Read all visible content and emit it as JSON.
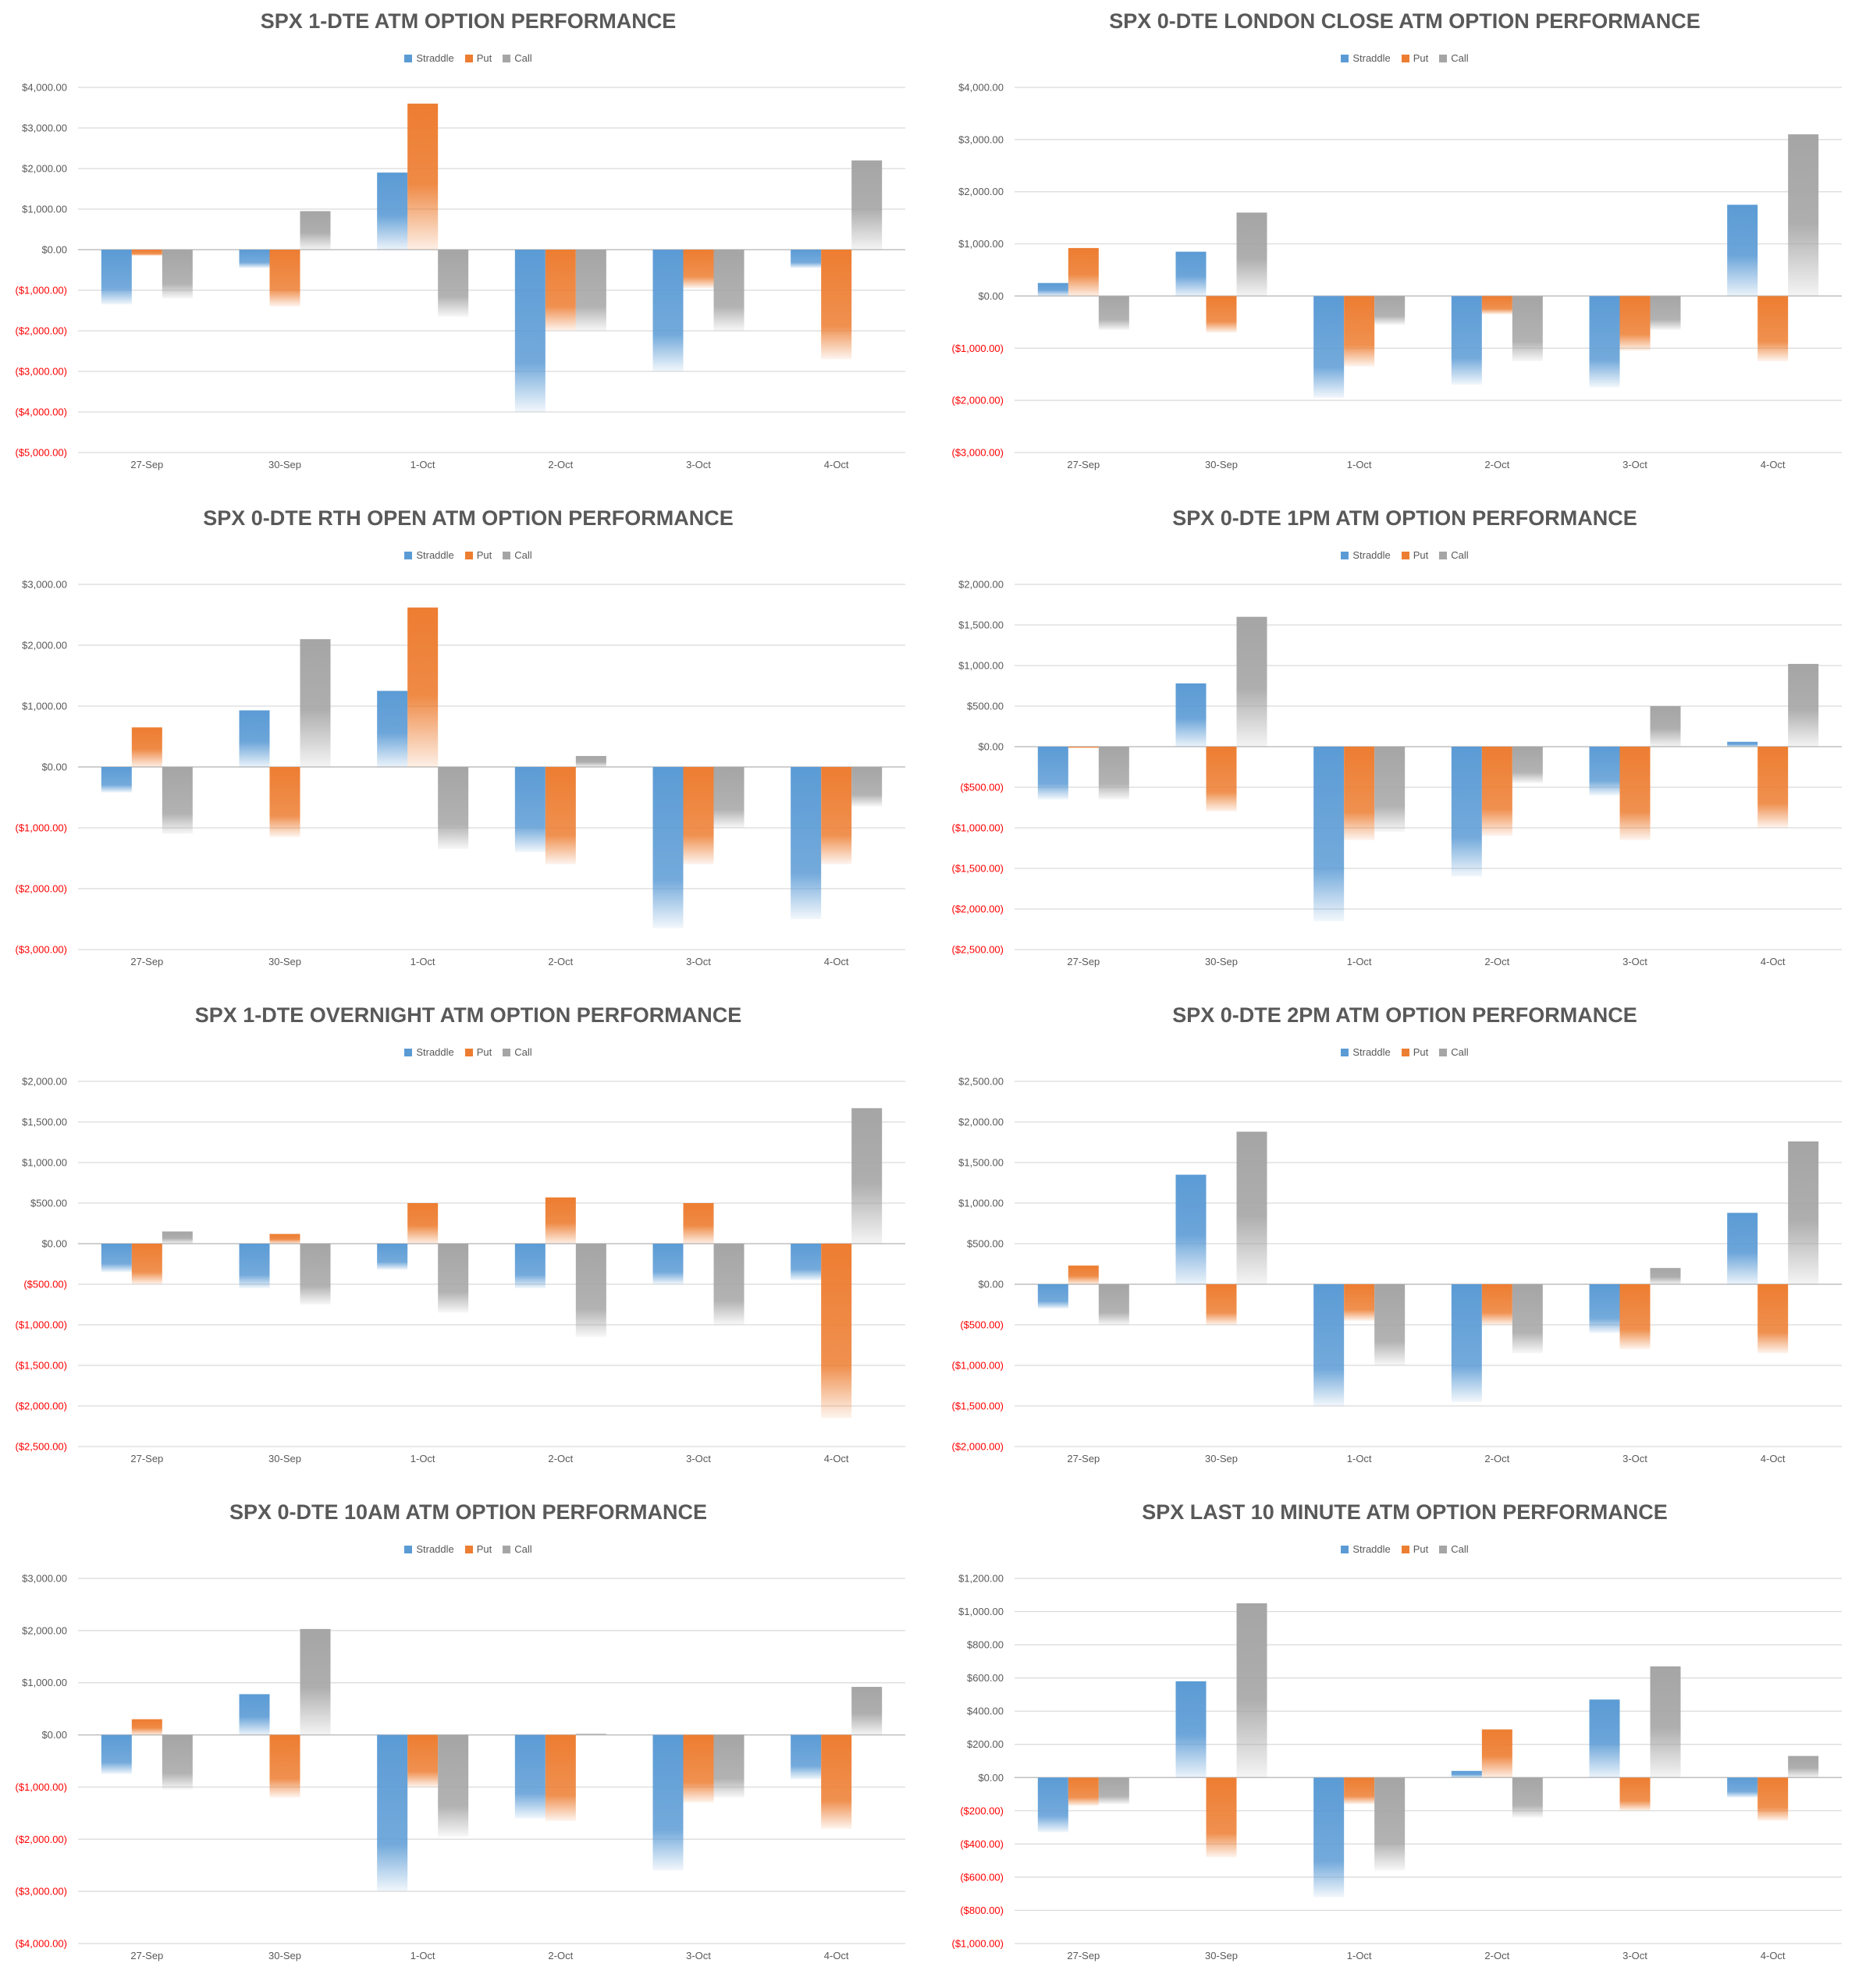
{
  "colors": {
    "straddle": "#5b9bd5",
    "put": "#ed7d31",
    "call": "#a5a5a5",
    "negative_label": "#ff0000",
    "label": "#595959",
    "grid": "#d9d9d9"
  },
  "legend": {
    "straddle": "Straddle",
    "put": "Put",
    "call": "Call"
  },
  "chart_data": [
    {
      "type": "bar",
      "title": "SPX 1-DTE ATM OPTION PERFORMANCE",
      "categories": [
        "27-Sep",
        "30-Sep",
        "1-Oct",
        "2-Oct",
        "3-Oct",
        "4-Oct"
      ],
      "ylim": [
        -5000,
        4000
      ],
      "yticks": [
        4000,
        3000,
        2000,
        1000,
        0,
        -1000,
        -2000,
        -3000,
        -4000,
        -5000
      ],
      "ytick_labels": [
        "$4,000.00",
        "$3,000.00",
        "$2,000.00",
        "$1,000.00",
        "$0.00",
        "($1,000.00)",
        "($2,000.00)",
        "($3,000.00)",
        "($4,000.00)",
        "($5,000.00)"
      ],
      "series": [
        {
          "name": "Straddle",
          "values": [
            -1350,
            -450,
            1900,
            -4000,
            -3000,
            -450
          ]
        },
        {
          "name": "Put",
          "values": [
            -150,
            -1400,
            3600,
            -2000,
            -950,
            -2700
          ]
        },
        {
          "name": "Call",
          "values": [
            -1200,
            950,
            -1650,
            -2000,
            -2000,
            2200
          ]
        }
      ]
    },
    {
      "type": "bar",
      "title": "SPX 0-DTE  LONDON CLOSE ATM OPTION PERFORMANCE",
      "categories": [
        "27-Sep",
        "30-Sep",
        "1-Oct",
        "2-Oct",
        "3-Oct",
        "4-Oct"
      ],
      "ylim": [
        -3000,
        4000
      ],
      "yticks": [
        4000,
        3000,
        2000,
        1000,
        0,
        -1000,
        -2000,
        -3000
      ],
      "ytick_labels": [
        "$4,000.00",
        "$3,000.00",
        "$2,000.00",
        "$1,000.00",
        "$0.00",
        "($1,000.00)",
        "($2,000.00)",
        "($3,000.00)"
      ],
      "series": [
        {
          "name": "Straddle",
          "values": [
            250,
            850,
            -1950,
            -1700,
            -1750,
            1750
          ]
        },
        {
          "name": "Put",
          "values": [
            920,
            -700,
            -1350,
            -350,
            -1050,
            -1250
          ]
        },
        {
          "name": "Call",
          "values": [
            -650,
            1600,
            -550,
            -1250,
            -650,
            3100
          ]
        }
      ]
    },
    {
      "type": "bar",
      "title": "SPX 0-DTE RTH OPEN ATM OPTION PERFORMANCE",
      "categories": [
        "27-Sep",
        "30-Sep",
        "1-Oct",
        "2-Oct",
        "3-Oct",
        "4-Oct"
      ],
      "ylim": [
        -3000,
        3000
      ],
      "yticks": [
        3000,
        2000,
        1000,
        0,
        -1000,
        -2000,
        -3000
      ],
      "ytick_labels": [
        "$3,000.00",
        "$2,000.00",
        "$1,000.00",
        "$0.00",
        "($1,000.00)",
        "($2,000.00)",
        "($3,000.00)"
      ],
      "series": [
        {
          "name": "Straddle",
          "values": [
            -420,
            930,
            1250,
            -1400,
            -2650,
            -2500
          ]
        },
        {
          "name": "Put",
          "values": [
            650,
            -1150,
            2620,
            -1600,
            -1600,
            -1600
          ]
        },
        {
          "name": "Call",
          "values": [
            -1100,
            2100,
            -1350,
            180,
            -1000,
            -650
          ]
        }
      ]
    },
    {
      "type": "bar",
      "title": "SPX 0-DTE 1PM ATM OPTION PERFORMANCE",
      "categories": [
        "27-Sep",
        "30-Sep",
        "1-Oct",
        "2-Oct",
        "3-Oct",
        "4-Oct"
      ],
      "ylim": [
        -2500,
        2000
      ],
      "yticks": [
        2000,
        1500,
        1000,
        500,
        0,
        -500,
        -1000,
        -1500,
        -2000,
        -2500
      ],
      "ytick_labels": [
        "$2,000.00",
        "$1,500.00",
        "$1,000.00",
        "$500.00",
        "$0.00",
        "($500.00)",
        "($1,000.00)",
        "($1,500.00)",
        "($2,000.00)",
        "($2,500.00)"
      ],
      "series": [
        {
          "name": "Straddle",
          "values": [
            -650,
            780,
            -2150,
            -1600,
            -600,
            60
          ]
        },
        {
          "name": "Put",
          "values": [
            -15,
            -800,
            -1150,
            -1100,
            -1150,
            -1000
          ]
        },
        {
          "name": "Call",
          "values": [
            -650,
            1600,
            -1050,
            -450,
            500,
            1020
          ]
        }
      ]
    },
    {
      "type": "bar",
      "title": "SPX 1-DTE OVERNIGHT ATM OPTION PERFORMANCE",
      "categories": [
        "27-Sep",
        "30-Sep",
        "1-Oct",
        "2-Oct",
        "3-Oct",
        "4-Oct"
      ],
      "ylim": [
        -2500,
        2000
      ],
      "yticks": [
        2000,
        1500,
        1000,
        500,
        0,
        -500,
        -1000,
        -1500,
        -2000,
        -2500
      ],
      "ytick_labels": [
        "$2,000.00",
        "$1,500.00",
        "$1,000.00",
        "$500.00",
        "$0.00",
        "($500.00)",
        "($1,000.00)",
        "($1,500.00)",
        "($2,000.00)",
        "($2,500.00)"
      ],
      "series": [
        {
          "name": "Straddle",
          "values": [
            -350,
            -550,
            -320,
            -550,
            -500,
            -450
          ]
        },
        {
          "name": "Put",
          "values": [
            -500,
            120,
            500,
            570,
            500,
            -2150
          ]
        },
        {
          "name": "Call",
          "values": [
            150,
            -750,
            -850,
            -1150,
            -1000,
            1670
          ]
        }
      ]
    },
    {
      "type": "bar",
      "title": "SPX 0-DTE 2PM ATM OPTION PERFORMANCE",
      "categories": [
        "27-Sep",
        "30-Sep",
        "1-Oct",
        "2-Oct",
        "3-Oct",
        "4-Oct"
      ],
      "ylim": [
        -2000,
        2500
      ],
      "yticks": [
        2500,
        2000,
        1500,
        1000,
        500,
        0,
        -500,
        -1000,
        -1500,
        -2000
      ],
      "ytick_labels": [
        "$2,500.00",
        "$2,000.00",
        "$1,500.00",
        "$1,000.00",
        "$500.00",
        "$0.00",
        "($500.00)",
        "($1,000.00)",
        "($1,500.00)",
        "($2,000.00)"
      ],
      "series": [
        {
          "name": "Straddle",
          "values": [
            -300,
            1350,
            -1500,
            -1450,
            -600,
            880
          ]
        },
        {
          "name": "Put",
          "values": [
            230,
            -500,
            -450,
            -500,
            -800,
            -850
          ]
        },
        {
          "name": "Call",
          "values": [
            -500,
            1880,
            -1000,
            -850,
            200,
            1760
          ]
        }
      ]
    },
    {
      "type": "bar",
      "title": "SPX 0-DTE 10AM ATM OPTION PERFORMANCE",
      "categories": [
        "27-Sep",
        "30-Sep",
        "1-Oct",
        "2-Oct",
        "3-Oct",
        "4-Oct"
      ],
      "ylim": [
        -4000,
        3000
      ],
      "yticks": [
        3000,
        2000,
        1000,
        0,
        -1000,
        -2000,
        -3000,
        -4000
      ],
      "ytick_labels": [
        "$3,000.00",
        "$2,000.00",
        "$1,000.00",
        "$0.00",
        "($1,000.00)",
        "($2,000.00)",
        "($3,000.00)",
        "($4,000.00)"
      ],
      "series": [
        {
          "name": "Straddle",
          "values": [
            -750,
            780,
            -3000,
            -1600,
            -2600,
            -850
          ]
        },
        {
          "name": "Put",
          "values": [
            300,
            -1200,
            -1000,
            -1650,
            -1300,
            -1800
          ]
        },
        {
          "name": "Call",
          "values": [
            -1050,
            2030,
            -1950,
            20,
            -1200,
            920
          ]
        }
      ]
    },
    {
      "type": "bar",
      "title": "SPX LAST 10 MINUTE ATM OPTION PERFORMANCE",
      "categories": [
        "27-Sep",
        "30-Sep",
        "1-Oct",
        "2-Oct",
        "3-Oct",
        "4-Oct"
      ],
      "ylim": [
        -1000,
        1200
      ],
      "yticks": [
        1200,
        1000,
        800,
        600,
        400,
        200,
        0,
        -200,
        -400,
        -600,
        -800,
        -1000
      ],
      "ytick_labels": [
        "$1,200.00",
        "$1,000.00",
        "$800.00",
        "$600.00",
        "$400.00",
        "$200.00",
        "$0.00",
        "($200.00)",
        "($400.00)",
        "($600.00)",
        "($800.00)",
        "($1,000.00)"
      ],
      "series": [
        {
          "name": "Straddle",
          "values": [
            -330,
            580,
            -720,
            40,
            470,
            -120
          ]
        },
        {
          "name": "Put",
          "values": [
            -170,
            -480,
            -160,
            290,
            -200,
            -260
          ]
        },
        {
          "name": "Call",
          "values": [
            -160,
            1050,
            -560,
            -240,
            670,
            130
          ]
        }
      ]
    }
  ]
}
